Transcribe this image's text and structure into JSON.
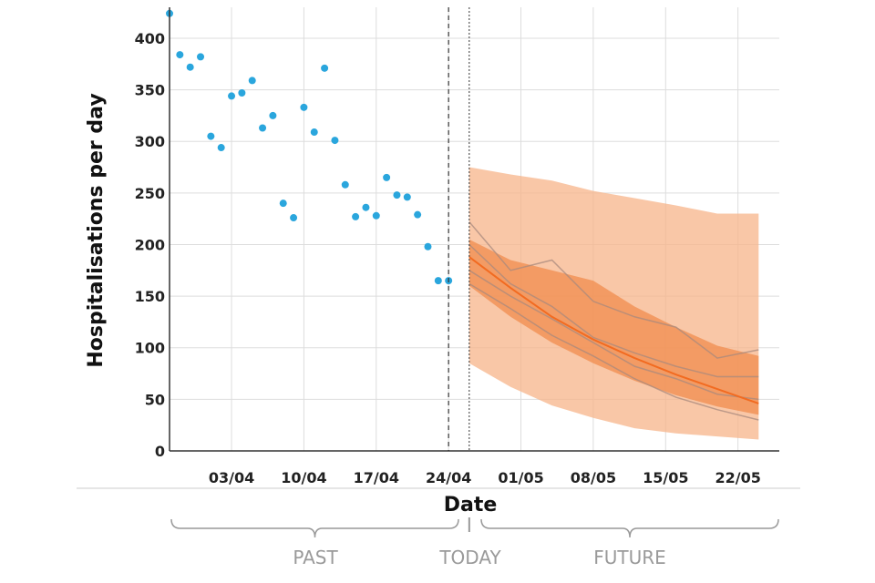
{
  "chart_data": {
    "type": "scatter",
    "title": "",
    "xlabel": "Date",
    "ylabel": "Hospitalisations per day",
    "ylim": [
      0,
      430
    ],
    "yticks": [
      0,
      50,
      100,
      150,
      200,
      250,
      300,
      350,
      400
    ],
    "xlim": [
      "2021-03-28",
      "2021-05-26"
    ],
    "xticks": [
      {
        "date": "2021-04-03",
        "label": "03/04"
      },
      {
        "date": "2021-04-10",
        "label": "10/04"
      },
      {
        "date": "2021-04-17",
        "label": "17/04"
      },
      {
        "date": "2021-04-24",
        "label": "24/04"
      },
      {
        "date": "2021-05-01",
        "label": "01/05"
      },
      {
        "date": "2021-05-08",
        "label": "08/05"
      },
      {
        "date": "2021-05-15",
        "label": "15/05"
      },
      {
        "date": "2021-05-22",
        "label": "22/05"
      }
    ],
    "grid": true,
    "observed_color": "#2aa6dd",
    "observed": {
      "x": [
        "2021-03-28",
        "2021-03-29",
        "2021-03-30",
        "2021-03-31",
        "2021-04-01",
        "2021-04-02",
        "2021-04-03",
        "2021-04-04",
        "2021-04-05",
        "2021-04-06",
        "2021-04-07",
        "2021-04-08",
        "2021-04-09",
        "2021-04-10",
        "2021-04-11",
        "2021-04-12",
        "2021-04-13",
        "2021-04-14",
        "2021-04-15",
        "2021-04-16",
        "2021-04-17",
        "2021-04-18",
        "2021-04-19",
        "2021-04-20",
        "2021-04-21",
        "2021-04-22",
        "2021-04-23",
        "2021-04-24"
      ],
      "y": [
        424,
        384,
        372,
        382,
        305,
        294,
        344,
        347,
        359,
        313,
        325,
        240,
        226,
        333,
        309,
        371,
        301,
        258,
        227,
        236,
        228,
        265,
        248,
        246,
        229,
        198,
        165,
        165
      ]
    },
    "today": "2021-04-26",
    "last_observed": "2021-04-24",
    "forecast_color": "#f26b21",
    "forecast": {
      "x": [
        "2021-04-26",
        "2021-04-30",
        "2021-05-04",
        "2021-05-08",
        "2021-05-12",
        "2021-05-16",
        "2021-05-20",
        "2021-05-24"
      ],
      "median": [
        188,
        158,
        130,
        108,
        90,
        74,
        60,
        46
      ],
      "outer_lower": [
        85,
        62,
        44,
        32,
        22,
        17,
        14,
        11
      ],
      "outer_upper": [
        275,
        268,
        262,
        252,
        245,
        238,
        230,
        230
      ],
      "inner_lower": [
        160,
        130,
        105,
        85,
        68,
        54,
        43,
        35
      ],
      "inner_upper": [
        205,
        185,
        175,
        165,
        140,
        120,
        102,
        92
      ],
      "samples": [
        [
          222,
          175,
          185,
          145,
          130,
          120,
          90,
          98
        ],
        [
          200,
          162,
          140,
          110,
          95,
          82,
          72,
          72
        ],
        [
          175,
          150,
          128,
          105,
          82,
          70,
          55,
          50
        ],
        [
          162,
          138,
          112,
          92,
          70,
          52,
          40,
          30
        ]
      ]
    },
    "annotations": {
      "past": "PAST",
      "today": "TODAY",
      "future": "FUTURE"
    }
  }
}
